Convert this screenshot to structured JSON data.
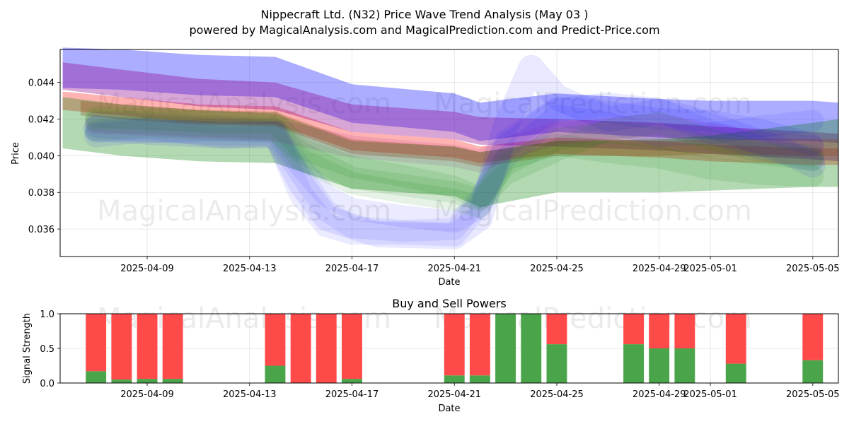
{
  "title_line1": "Nippecraft Ltd. (N32) Price Wave Trend Analysis (May 03 )",
  "title_line2": "powered by MagicalAnalysis.com and MagicalPrediction.com and Predict-Price.com",
  "watermarks": [
    "MagicalAnalysis.com",
    "MagicalPrediction.com"
  ],
  "chart_data": [
    {
      "type": "area",
      "xlabel": "Date",
      "ylabel": "Price",
      "ylim": [
        0.0345,
        0.0458
      ],
      "y_ticks": [
        "0.036",
        "0.038",
        "0.040",
        "0.042",
        "0.044"
      ],
      "y_tick_values": [
        0.036,
        0.038,
        0.04,
        0.042,
        0.044
      ],
      "x_ticks": [
        "2025-04-09",
        "2025-04-13",
        "2025-04-17",
        "2025-04-21",
        "2025-04-25",
        "2025-04-29",
        "2025-05-01",
        "2025-05-05"
      ],
      "x_tick_values": [
        3.0,
        7.0,
        11.0,
        15.0,
        19.0,
        23.0,
        25.0,
        29.0
      ],
      "xlim": [
        -0.4,
        30.0
      ],
      "grid": true,
      "bands": [
        {
          "color": "#0000ff",
          "alpha": 0.32,
          "x": [
            -0.3,
            2,
            5,
            8,
            11,
            15,
            16,
            19,
            23,
            25,
            29,
            30
          ],
          "upper": [
            0.0459,
            0.0458,
            0.0455,
            0.0454,
            0.0439,
            0.0434,
            0.0429,
            0.0434,
            0.0431,
            0.043,
            0.043,
            0.0429
          ],
          "lower": [
            0.0437,
            0.0436,
            0.0433,
            0.0432,
            0.0418,
            0.0413,
            0.0408,
            0.0413,
            0.041,
            0.0409,
            0.0408,
            0.0407
          ]
        },
        {
          "color": "#ff0000",
          "alpha": 0.3,
          "x": [
            -0.3,
            2,
            5,
            8,
            11,
            15,
            16,
            19,
            23,
            25,
            29,
            30
          ],
          "upper": [
            0.0435,
            0.0432,
            0.0428,
            0.0427,
            0.0413,
            0.0409,
            0.0405,
            0.041,
            0.0408,
            0.0406,
            0.0404,
            0.0404
          ],
          "lower": [
            0.0425,
            0.0422,
            0.0418,
            0.0417,
            0.0403,
            0.0399,
            0.0396,
            0.0401,
            0.0399,
            0.0397,
            0.0395,
            0.0395
          ]
        },
        {
          "color": "#8b008b",
          "alpha": 0.35,
          "x": [
            -0.3,
            2,
            5,
            8,
            11,
            15,
            16,
            19,
            23,
            25,
            29,
            30
          ],
          "upper": [
            0.0451,
            0.0447,
            0.0442,
            0.044,
            0.0428,
            0.0424,
            0.0421,
            0.042,
            0.0418,
            0.0416,
            0.0413,
            0.0412
          ],
          "lower": [
            0.0436,
            0.0432,
            0.0427,
            0.0425,
            0.0413,
            0.0409,
            0.0406,
            0.0405,
            0.0403,
            0.0401,
            0.0398,
            0.0397
          ]
        },
        {
          "color": "#008000",
          "alpha": 0.3,
          "x": [
            -0.3,
            2,
            5,
            8,
            11,
            15,
            16,
            19,
            23,
            25,
            29,
            30
          ],
          "upper": [
            0.0432,
            0.0428,
            0.0425,
            0.0423,
            0.0408,
            0.0405,
            0.0402,
            0.0408,
            0.0409,
            0.0411,
            0.0418,
            0.042
          ],
          "lower": [
            0.0404,
            0.04,
            0.0397,
            0.0396,
            0.0382,
            0.0378,
            0.0372,
            0.038,
            0.038,
            0.0381,
            0.0383,
            0.0383
          ]
        },
        {
          "color": "#8b4513",
          "alpha": 0.28,
          "x": [
            0.4,
            2,
            5,
            8,
            11,
            15,
            16,
            19,
            23,
            25,
            29,
            30
          ],
          "upper": [
            0.043,
            0.0428,
            0.0425,
            0.0424,
            0.0409,
            0.0405,
            0.0402,
            0.0408,
            0.0408,
            0.0409,
            0.0409,
            0.0409
          ],
          "lower": [
            0.0422,
            0.042,
            0.0417,
            0.0416,
            0.0401,
            0.0397,
            0.0394,
            0.04,
            0.04,
            0.0401,
            0.04,
            0.04
          ]
        }
      ],
      "waves": [
        {
          "color": "#0000ff",
          "alpha": 0.09,
          "width": 0.0014,
          "x": [
            1,
            3,
            6,
            8,
            9,
            10,
            12,
            15,
            16,
            17,
            18,
            19,
            21,
            23,
            24,
            26,
            28,
            29
          ],
          "y": [
            0.0415,
            0.0413,
            0.0411,
            0.0412,
            0.0385,
            0.0366,
            0.0357,
            0.0356,
            0.0366,
            0.0416,
            0.0448,
            0.0432,
            0.042,
            0.0424,
            0.0421,
            0.0412,
            0.0402,
            0.0395
          ]
        },
        {
          "color": "#0000ff",
          "alpha": 0.08,
          "width": 0.0013,
          "x": [
            1,
            3,
            6,
            8,
            9,
            10,
            11,
            13,
            15,
            16,
            17,
            19,
            21,
            23,
            25,
            27,
            29
          ],
          "y": [
            0.0411,
            0.0414,
            0.0412,
            0.0412,
            0.0379,
            0.0362,
            0.0358,
            0.0358,
            0.0357,
            0.0374,
            0.0405,
            0.0425,
            0.0428,
            0.0425,
            0.0413,
            0.0404,
            0.0398
          ]
        },
        {
          "color": "#0000ff",
          "alpha": 0.08,
          "width": 0.0012,
          "x": [
            1,
            3,
            6,
            8,
            9,
            10,
            11,
            13,
            15,
            16,
            17,
            19,
            21,
            23,
            25,
            27,
            29
          ],
          "y": [
            0.0413,
            0.0415,
            0.041,
            0.041,
            0.039,
            0.037,
            0.0361,
            0.0359,
            0.036,
            0.0377,
            0.0399,
            0.0422,
            0.0418,
            0.0411,
            0.0412,
            0.0416,
            0.0419
          ]
        },
        {
          "color": "#0000ff",
          "alpha": 0.08,
          "width": 0.0012,
          "x": [
            1,
            3,
            6,
            8,
            9,
            10,
            11,
            13,
            15,
            16,
            17,
            19,
            21,
            23,
            25,
            27,
            29
          ],
          "y": [
            0.0416,
            0.0413,
            0.0414,
            0.0413,
            0.0394,
            0.0378,
            0.0371,
            0.0367,
            0.0364,
            0.0372,
            0.0408,
            0.0426,
            0.0424,
            0.042,
            0.0419,
            0.0414,
            0.0406
          ]
        },
        {
          "color": "#008000",
          "alpha": 0.1,
          "width": 0.0012,
          "x": [
            1,
            3,
            6,
            8,
            9,
            11,
            13,
            15,
            16,
            17,
            19,
            21,
            23,
            25,
            27,
            29
          ],
          "y": [
            0.0419,
            0.0418,
            0.0416,
            0.0415,
            0.0398,
            0.0385,
            0.038,
            0.0376,
            0.0372,
            0.0398,
            0.0406,
            0.0402,
            0.0399,
            0.0393,
            0.039,
            0.0389
          ]
        },
        {
          "color": "#008000",
          "alpha": 0.1,
          "width": 0.0012,
          "x": [
            1,
            3,
            6,
            8,
            9,
            11,
            13,
            15,
            16,
            17,
            19,
            21,
            23,
            25,
            27,
            29
          ],
          "y": [
            0.0414,
            0.0416,
            0.0414,
            0.0414,
            0.0402,
            0.0388,
            0.0384,
            0.038,
            0.0376,
            0.039,
            0.0403,
            0.0414,
            0.0418,
            0.0409,
            0.0402,
            0.04
          ]
        },
        {
          "color": "#008000",
          "alpha": 0.1,
          "width": 0.0012,
          "x": [
            1,
            3,
            6,
            8,
            9,
            11,
            13,
            15,
            16,
            17,
            19,
            21,
            23,
            25,
            27,
            29
          ],
          "y": [
            0.0421,
            0.042,
            0.0418,
            0.0418,
            0.0404,
            0.0394,
            0.0389,
            0.0383,
            0.0377,
            0.0395,
            0.0409,
            0.0413,
            0.041,
            0.0405,
            0.0401,
            0.0398
          ]
        },
        {
          "color": "#8b008b",
          "alpha": 0.1,
          "width": 0.0012,
          "x": [
            1,
            3,
            6,
            8,
            11,
            15,
            16,
            17,
            19,
            21,
            23,
            25,
            27,
            29
          ],
          "y": [
            0.0418,
            0.0417,
            0.0415,
            0.0414,
            0.0405,
            0.04,
            0.0397,
            0.0404,
            0.0412,
            0.0415,
            0.0417,
            0.0412,
            0.0407,
            0.0405
          ]
        }
      ]
    },
    {
      "type": "bar",
      "title": "Buy and Sell Powers",
      "xlabel": "Date",
      "ylabel": "Signal Strength",
      "ylim": [
        0,
        1.0
      ],
      "y_ticks": [
        "0.0",
        "0.5",
        "1.0"
      ],
      "y_tick_values": [
        0.0,
        0.5,
        1.0
      ],
      "x_ticks": [
        "2025-04-09",
        "2025-04-13",
        "2025-04-17",
        "2025-04-21",
        "2025-04-25",
        "2025-04-29",
        "2025-05-01",
        "2025-05-05"
      ],
      "x_tick_values": [
        3.0,
        7.0,
        11.0,
        15.0,
        19.0,
        23.0,
        25.0,
        29.0
      ],
      "xlim": [
        -0.4,
        30.0
      ],
      "grid": true,
      "buy_color": "#4aa54a",
      "sell_color": "#ff4a4a",
      "x": [
        1,
        2,
        3,
        4,
        8,
        9,
        10,
        11,
        15,
        16,
        17,
        18,
        19,
        22,
        23,
        24,
        26,
        29
      ],
      "buy": [
        0.17,
        0.05,
        0.06,
        0.06,
        0.25,
        0.0,
        0.0,
        0.06,
        0.11,
        0.11,
        1.0,
        1.0,
        0.56,
        0.56,
        0.5,
        0.5,
        0.28,
        0.33
      ],
      "sell": [
        0.83,
        0.95,
        0.94,
        0.94,
        0.75,
        1.0,
        1.0,
        0.94,
        0.89,
        0.89,
        0.0,
        0.0,
        0.44,
        0.44,
        0.5,
        0.5,
        0.72,
        0.67
      ]
    }
  ]
}
